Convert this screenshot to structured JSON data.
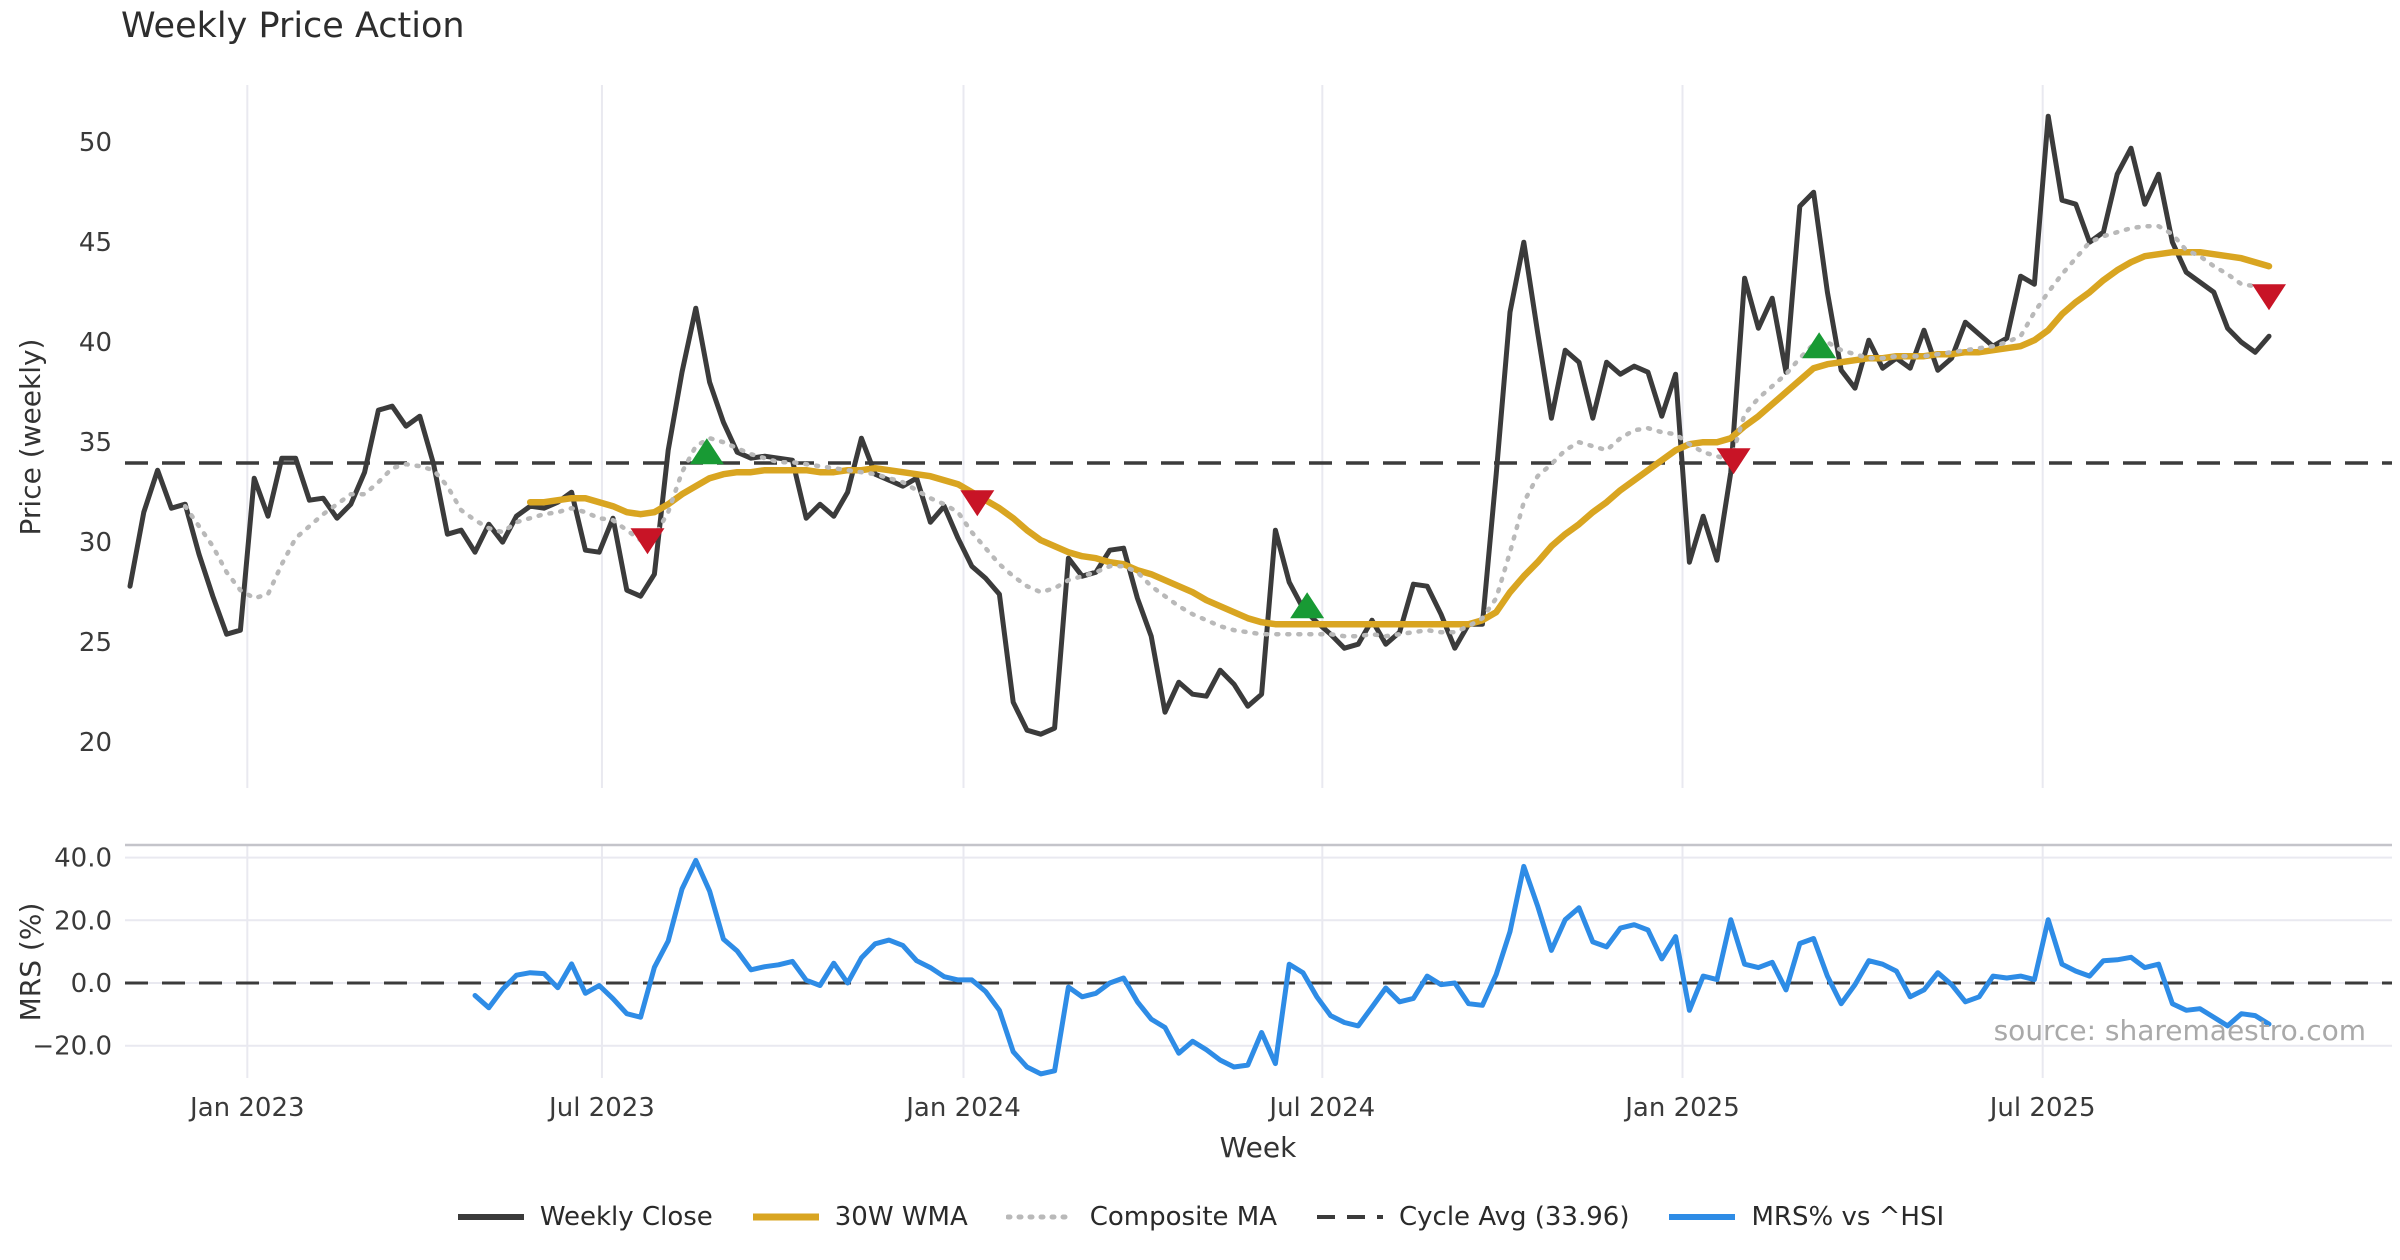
{
  "title": "Weekly Price Action",
  "source": "source: sharemaestro.com",
  "colors": {
    "close": "#3b3b3b",
    "wma": "#d9a521",
    "composite": "#b9b9b9",
    "cycle": "#3b3b3b",
    "mrs": "#2e8ce6",
    "buy": "#189a34",
    "sell": "#c81426",
    "grid": "#e9e9f0",
    "spine": "#c4c4ca",
    "tick_text": "#3a3a3a",
    "axis_text": "#333333",
    "source_text": "#a9a9a9"
  },
  "legend": [
    {
      "label": "Weekly Close",
      "color": "#3b3b3b",
      "dash": "solid",
      "width": 6
    },
    {
      "label": "30W WMA",
      "color": "#d9a521",
      "dash": "solid",
      "width": 7
    },
    {
      "label": "Composite MA",
      "color": "#b9b9b9",
      "dash": "dotted",
      "width": 5
    },
    {
      "label": "Cycle Avg (33.96)",
      "color": "#3b3b3b",
      "dash": "dashed",
      "width": 4
    },
    {
      "label": "MRS% vs ^HSI",
      "color": "#2e8ce6",
      "dash": "solid",
      "width": 6
    }
  ],
  "chart_data": {
    "type": "line",
    "xlabel": "Week",
    "xticks": [
      {
        "week": 8.5,
        "label": "Jan 2023"
      },
      {
        "week": 34.2,
        "label": "Jul 2023"
      },
      {
        "week": 60.4,
        "label": "Jan 2024"
      },
      {
        "week": 86.4,
        "label": "Jul 2024"
      },
      {
        "week": 112.5,
        "label": "Jan 2025"
      },
      {
        "week": 138.6,
        "label": "Jul 2025"
      }
    ],
    "n_weeks": 156,
    "panels": [
      {
        "id": "price",
        "ylabel": "Price (weekly)",
        "ylim": [
          17.6,
          52.9
        ],
        "yticks": [
          20,
          25,
          30,
          35,
          40,
          45,
          50
        ],
        "ytick_labels": [
          "20",
          "25",
          "30",
          "35",
          "40",
          "45",
          "50"
        ],
        "cycle_avg": 33.96,
        "series": [
          {
            "name": "Weekly Close",
            "start_week": 0,
            "values": [
              27.8,
              31.5,
              33.6,
              31.7,
              31.9,
              29.4,
              27.3,
              25.4,
              25.6,
              33.2,
              31.3,
              34.2,
              34.2,
              32.1,
              32.2,
              31.2,
              31.9,
              33.5,
              36.6,
              36.8,
              35.8,
              36.3,
              33.9,
              30.4,
              30.6,
              29.5,
              30.9,
              30.0,
              31.3,
              31.8,
              31.7,
              32.0,
              32.5,
              29.6,
              29.5,
              31.2,
              27.6,
              27.3,
              28.4,
              34.6,
              38.5,
              41.7,
              38.0,
              36.0,
              34.5,
              34.2,
              34.3,
              34.2,
              34.1,
              31.2,
              31.9,
              31.3,
              32.5,
              35.2,
              33.4,
              33.1,
              32.8,
              33.2,
              31.0,
              31.8,
              30.2,
              28.8,
              28.2,
              27.4,
              22.0,
              20.6,
              20.4,
              20.7,
              29.2,
              28.3,
              28.5,
              29.6,
              29.7,
              27.2,
              25.3,
              21.5,
              23.0,
              22.4,
              22.3,
              23.6,
              22.9,
              21.8,
              22.4,
              30.6,
              28.0,
              26.7,
              26.0,
              25.4,
              24.7,
              24.9,
              26.1,
              24.9,
              25.5,
              27.9,
              27.8,
              26.4,
              24.7,
              25.9,
              25.9,
              33.4,
              41.5,
              45.0,
              40.5,
              36.2,
              39.6,
              39.0,
              36.2,
              39.0,
              38.4,
              38.8,
              38.5,
              36.3,
              38.4,
              29.0,
              31.3,
              29.1,
              33.5,
              43.2,
              40.7,
              42.2,
              38.5,
              46.8,
              47.5,
              42.5,
              38.6,
              37.7,
              40.1,
              38.7,
              39.2,
              38.7,
              40.6,
              38.6,
              39.2,
              41.0,
              40.4,
              39.8,
              40.2,
              43.3,
              42.9,
              51.3,
              47.1,
              46.9,
              45.0,
              45.5,
              48.4,
              49.7,
              46.9,
              48.4,
              45.0,
              43.5,
              43.0,
              42.5,
              40.7,
              40.0,
              39.5,
              40.3
            ]
          },
          {
            "name": "30W WMA",
            "start_week": 29,
            "values": [
              32.0,
              32.0,
              32.1,
              32.2,
              32.2,
              32.0,
              31.8,
              31.5,
              31.4,
              31.5,
              31.9,
              32.4,
              32.8,
              33.2,
              33.4,
              33.5,
              33.5,
              33.6,
              33.6,
              33.6,
              33.6,
              33.5,
              33.5,
              33.6,
              33.6,
              33.7,
              33.6,
              33.5,
              33.4,
              33.3,
              33.1,
              32.9,
              32.5,
              32.1,
              31.7,
              31.2,
              30.6,
              30.1,
              29.8,
              29.5,
              29.3,
              29.2,
              29.0,
              28.9,
              28.6,
              28.4,
              28.1,
              27.8,
              27.5,
              27.1,
              26.8,
              26.5,
              26.2,
              26.0,
              25.9,
              25.9,
              25.9,
              25.9,
              25.9,
              25.9,
              25.9,
              25.9,
              25.9,
              25.9,
              25.9,
              25.9,
              25.9,
              25.9,
              25.9,
              26.1,
              26.5,
              27.5,
              28.3,
              29.0,
              29.8,
              30.4,
              30.9,
              31.5,
              32.0,
              32.6,
              33.1,
              33.6,
              34.1,
              34.6,
              34.9,
              35.0,
              35.0,
              35.2,
              35.8,
              36.3,
              36.9,
              37.5,
              38.1,
              38.7,
              38.9,
              39.0,
              39.1,
              39.2,
              39.2,
              39.3,
              39.3,
              39.3,
              39.4,
              39.4,
              39.5,
              39.5,
              39.6,
              39.7,
              39.8,
              40.1,
              40.6,
              41.4,
              42.0,
              42.5,
              43.1,
              43.6,
              44.0,
              44.3,
              44.4,
              44.5,
              44.5,
              44.5,
              44.4,
              44.3,
              44.2,
              44.0,
              43.8
            ]
          },
          {
            "name": "Composite MA",
            "start_week": 4,
            "values": [
              31.8,
              30.8,
              29.8,
              28.5,
              27.6,
              27.2,
              27.4,
              28.9,
              30.2,
              30.8,
              31.4,
              31.9,
              32.4,
              32.4,
              33.0,
              33.7,
              33.9,
              33.8,
              33.6,
              32.8,
              31.6,
              31.1,
              30.7,
              30.5,
              31.0,
              31.2,
              31.4,
              31.5,
              31.7,
              31.5,
              31.2,
              31.1,
              30.6,
              30.1,
              30.3,
              31.5,
              33.5,
              34.8,
              35.2,
              35.0,
              34.7,
              34.4,
              34.2,
              34.0,
              34.0,
              33.9,
              33.8,
              33.7,
              33.6,
              33.5,
              33.4,
              33.2,
              33.0,
              32.6,
              32.2,
              31.9,
              31.5,
              30.5,
              29.7,
              28.9,
              28.3,
              27.8,
              27.5,
              27.7,
              28.1,
              28.3,
              28.5,
              28.8,
              28.8,
              28.5,
              27.8,
              27.3,
              26.8,
              26.4,
              26.1,
              25.8,
              25.6,
              25.5,
              25.4,
              25.4,
              25.4,
              25.4,
              25.4,
              25.4,
              25.3,
              25.3,
              25.4,
              25.3,
              25.4,
              25.5,
              25.6,
              25.5,
              25.5,
              25.8,
              26.2,
              27.2,
              29.5,
              32.0,
              33.3,
              33.9,
              34.6,
              35.0,
              34.8,
              34.6,
              35.2,
              35.6,
              35.7,
              35.5,
              35.4,
              34.9,
              34.5,
              34.3,
              34.1,
              36.4,
              37.2,
              37.8,
              38.4,
              39.2,
              39.9,
              40.0,
              39.6,
              39.4,
              39.2,
              39.2,
              39.3,
              39.3,
              39.3,
              39.4,
              39.5,
              39.6,
              39.7,
              39.8,
              40.0,
              40.3,
              41.5,
              42.5,
              43.4,
              44.2,
              45.0,
              45.3,
              45.5,
              45.7,
              45.8,
              45.8,
              45.4,
              44.6,
              44.3,
              43.8,
              43.4,
              42.9,
              42.8
            ]
          }
        ],
        "signals": [
          {
            "type": "sell",
            "week": 37.5,
            "price": 30.1
          },
          {
            "type": "buy",
            "week": 41.8,
            "price": 34.5
          },
          {
            "type": "sell",
            "week": 61.4,
            "price": 32.0
          },
          {
            "type": "buy",
            "week": 85.3,
            "price": 26.8
          },
          {
            "type": "sell",
            "week": 116.2,
            "price": 34.1
          },
          {
            "type": "buy",
            "week": 122.4,
            "price": 39.8
          },
          {
            "type": "sell",
            "week": 155.0,
            "price": 42.3
          }
        ]
      },
      {
        "id": "mrs",
        "ylabel": "MRS (%)",
        "ylim": [
          -31,
          44.2
        ],
        "yticks": [
          -20,
          0,
          20,
          40
        ],
        "ytick_labels": [
          "−20.0",
          "0.0",
          "20.0",
          "40.0"
        ],
        "zero_line": 0,
        "series": [
          {
            "name": "MRS% vs ^HSI",
            "start_week": 25,
            "values": [
              -4.0,
              -7.9,
              -2.0,
              2.5,
              3.3,
              3.0,
              -1.5,
              6.1,
              -3.3,
              -0.8,
              -5.0,
              -9.8,
              -10.9,
              5.0,
              13.4,
              30.0,
              39.1,
              29.3,
              14.0,
              10.2,
              4.2,
              5.2,
              5.8,
              6.9,
              0.9,
              -0.8,
              6.3,
              0.0,
              8.0,
              12.5,
              13.7,
              12.0,
              7.1,
              4.9,
              2.0,
              1.0,
              1.0,
              -2.7,
              -8.7,
              -21.9,
              -26.8,
              -29.0,
              -28.0,
              -1.3,
              -4.4,
              -3.3,
              0.0,
              1.6,
              -6.0,
              -11.5,
              -14.2,
              -22.4,
              -18.6,
              -21.3,
              -24.6,
              -26.8,
              -26.2,
              -15.8,
              -25.7,
              6.0,
              3.3,
              -4.4,
              -10.4,
              -12.6,
              -13.7,
              -7.7,
              -1.6,
              -6.0,
              -4.9,
              2.2,
              -0.5,
              0.0,
              -6.6,
              -7.1,
              2.7,
              16.4,
              37.2,
              24.6,
              10.4,
              20.2,
              24.0,
              13.1,
              11.5,
              17.5,
              18.6,
              16.9,
              7.7,
              14.8,
              -8.7,
              2.2,
              1.1,
              20.2,
              6.0,
              4.9,
              6.6,
              -2.2,
              12.6,
              14.2,
              2.2,
              -6.6,
              -0.5,
              7.1,
              6.0,
              3.8,
              -4.4,
              -2.2,
              3.3,
              -0.5,
              -6.0,
              -4.4,
              2.2,
              1.6,
              2.2,
              1.1,
              20.2,
              6.0,
              3.8,
              2.2,
              7.1,
              7.4,
              8.2,
              4.9,
              6.0,
              -6.6,
              -8.7,
              -8.2,
              -10.9,
              -13.7,
              -9.8,
              -10.4,
              -13.1
            ]
          }
        ]
      }
    ]
  }
}
